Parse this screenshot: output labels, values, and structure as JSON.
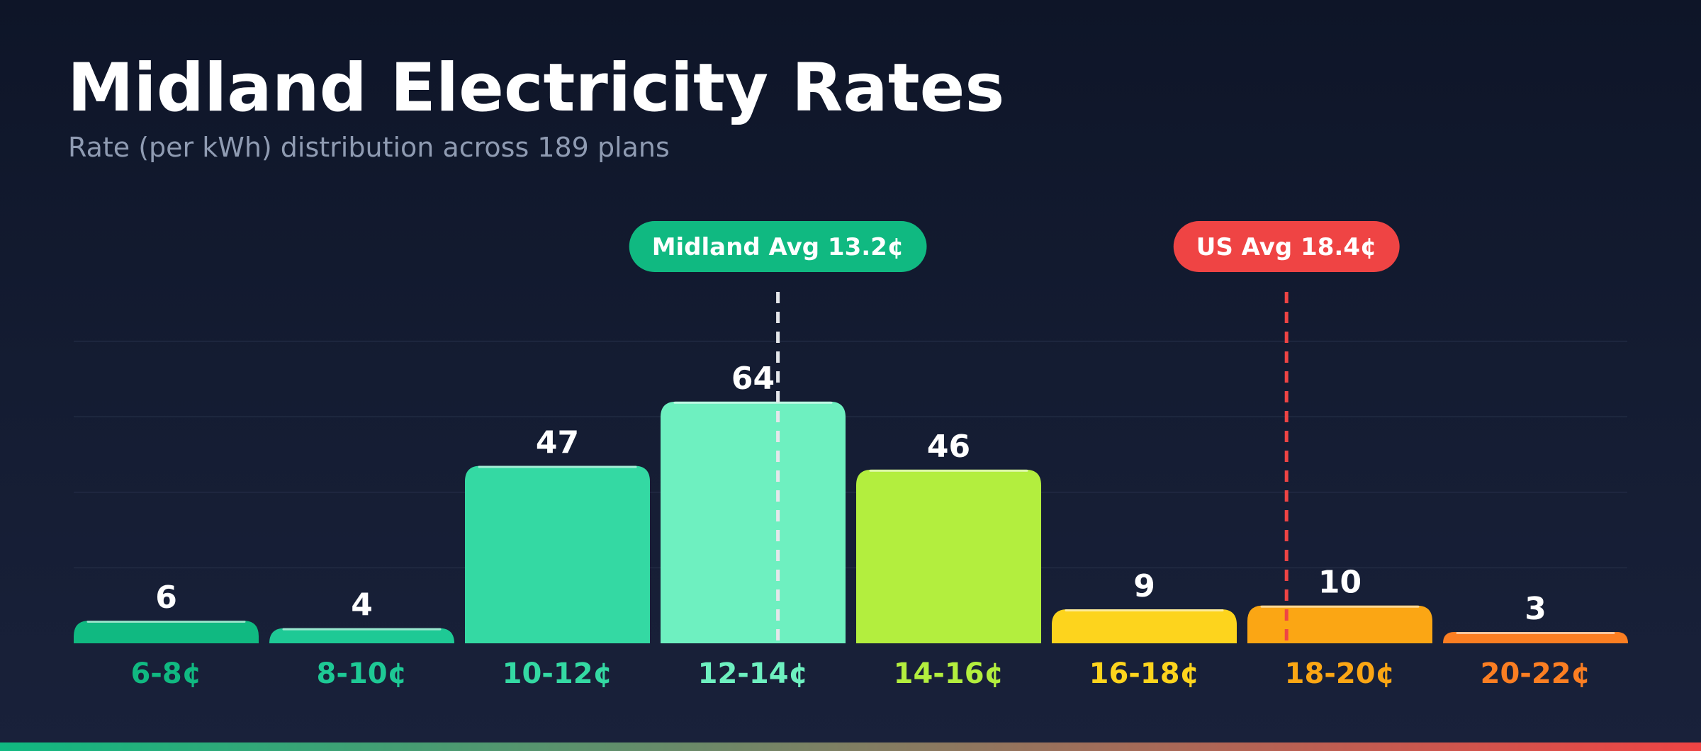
{
  "header": {
    "title": "Midland Electricity Rates",
    "subtitle": "Rate (per kWh) distribution across 189 plans"
  },
  "colors": {
    "background_top": "#0e1528",
    "background_bottom": "#19213a",
    "gridline": "#222b43",
    "midland_avg": "#10b981",
    "us_avg": "#ef4444",
    "value_label": "#ffffff",
    "bottom_bar_start": "#10b981",
    "bottom_bar_end": "#ef4444"
  },
  "chart_data": {
    "type": "bar",
    "categories": [
      "6-8¢",
      "8-10¢",
      "10-12¢",
      "12-14¢",
      "14-16¢",
      "16-18¢",
      "18-20¢",
      "20-22¢"
    ],
    "bin_edges": [
      6,
      8,
      10,
      12,
      14,
      16,
      18,
      20,
      22
    ],
    "values": [
      6,
      4,
      47,
      64,
      46,
      9,
      10,
      3
    ],
    "bar_colors": [
      "#10b981",
      "#1ec995",
      "#34d9a3",
      "#6ef0c0",
      "#b3ee3e",
      "#fdd41d",
      "#fba614",
      "#fb7e22"
    ],
    "category_label_colors": [
      "#10b981",
      "#1ec995",
      "#34d9a3",
      "#6ef0c0",
      "#b3ee3e",
      "#fdd41d",
      "#fba614",
      "#fb7e22"
    ],
    "ylim": [
      0,
      80
    ],
    "grid": true,
    "gridline_values": [
      20,
      40,
      60,
      80
    ],
    "reference_lines": [
      {
        "label": "Midland Avg 13.2¢",
        "value": 13.2,
        "color": "#10b981",
        "line_color": "#e5e7eb"
      },
      {
        "label": "US Avg 18.4¢",
        "value": 18.4,
        "color": "#ef4444",
        "line_color": "#ef4444"
      }
    ]
  }
}
